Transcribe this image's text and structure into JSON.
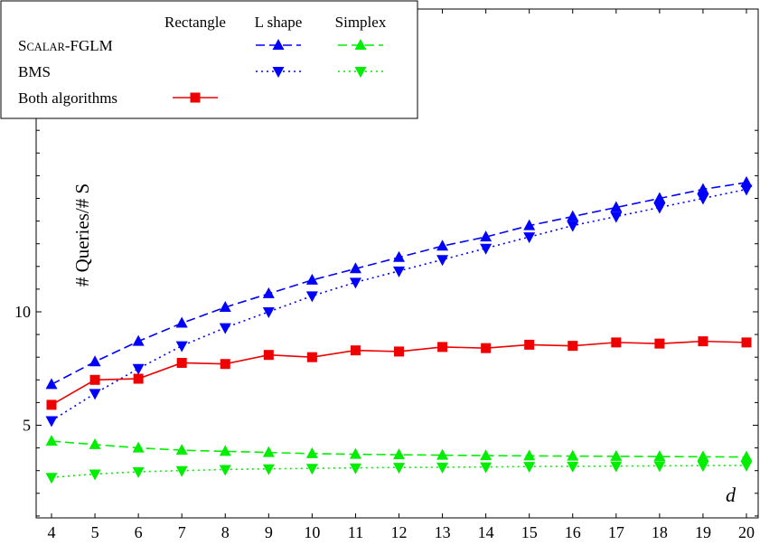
{
  "chart_data": {
    "type": "line",
    "xlabel": "d",
    "ylabel": "# Queries/# S",
    "x": [
      4,
      5,
      6,
      7,
      8,
      9,
      10,
      11,
      12,
      13,
      14,
      15,
      16,
      17,
      18,
      19,
      20
    ],
    "xticks": [
      "4",
      "5",
      "6",
      "7",
      "8",
      "9",
      "10",
      "11",
      "12",
      "13",
      "14",
      "15",
      "16",
      "17",
      "18",
      "19",
      "20"
    ],
    "yticks": [
      "5",
      "10"
    ],
    "ytick_values": [
      5,
      10
    ],
    "xlim": [
      4,
      20
    ],
    "ylim": [
      0,
      18.5
    ],
    "grid": false,
    "legend_position": "top-left",
    "legend": {
      "columns": [
        "Rectangle",
        "L shape",
        "Simplex"
      ],
      "rows": [
        {
          "label_main": "S",
          "label_small": "CALAR",
          "label_rest": "-FGLM"
        },
        {
          "label_main": "BMS",
          "label_small": "",
          "label_rest": ""
        },
        {
          "label_main": "Both algorithms",
          "label_small": "",
          "label_rest": ""
        }
      ]
    },
    "series": [
      {
        "row": "Scalar-FGLM",
        "column": "L shape",
        "color": "#0000ff",
        "dash": "dashed",
        "marker": "triangle-up",
        "values": [
          6.8,
          7.8,
          8.7,
          9.5,
          10.2,
          10.8,
          11.4,
          11.9,
          12.4,
          12.9,
          13.3,
          13.8,
          14.2,
          14.6,
          15.0,
          15.4,
          15.7
        ]
      },
      {
        "row": "BMS",
        "column": "L shape",
        "color": "#0000ff",
        "dash": "dotted",
        "marker": "triangle-down",
        "values": [
          5.2,
          6.4,
          7.5,
          8.5,
          9.3,
          10.0,
          10.7,
          11.3,
          11.8,
          12.3,
          12.8,
          13.3,
          13.8,
          14.2,
          14.6,
          15.0,
          15.4
        ]
      },
      {
        "row": "Scalar-FGLM",
        "column": "Simplex",
        "color": "#00ee00",
        "dash": "dashed",
        "marker": "triangle-up",
        "values": [
          4.3,
          4.15,
          4.0,
          3.9,
          3.85,
          3.8,
          3.75,
          3.72,
          3.7,
          3.68,
          3.66,
          3.65,
          3.64,
          3.63,
          3.62,
          3.61,
          3.6
        ]
      },
      {
        "row": "BMS",
        "column": "Simplex",
        "color": "#00ee00",
        "dash": "dotted",
        "marker": "triangle-down",
        "values": [
          2.7,
          2.85,
          2.95,
          3.0,
          3.05,
          3.08,
          3.1,
          3.12,
          3.14,
          3.15,
          3.16,
          3.18,
          3.19,
          3.2,
          3.21,
          3.22,
          3.23
        ]
      },
      {
        "row": "Both algorithms",
        "column": "Rectangle",
        "color": "#ee0000",
        "dash": "solid",
        "marker": "square",
        "values": [
          5.9,
          7.0,
          7.05,
          7.75,
          7.7,
          8.1,
          8.0,
          8.3,
          8.25,
          8.45,
          8.4,
          8.55,
          8.5,
          8.65,
          8.6,
          8.7,
          8.65
        ]
      }
    ]
  }
}
